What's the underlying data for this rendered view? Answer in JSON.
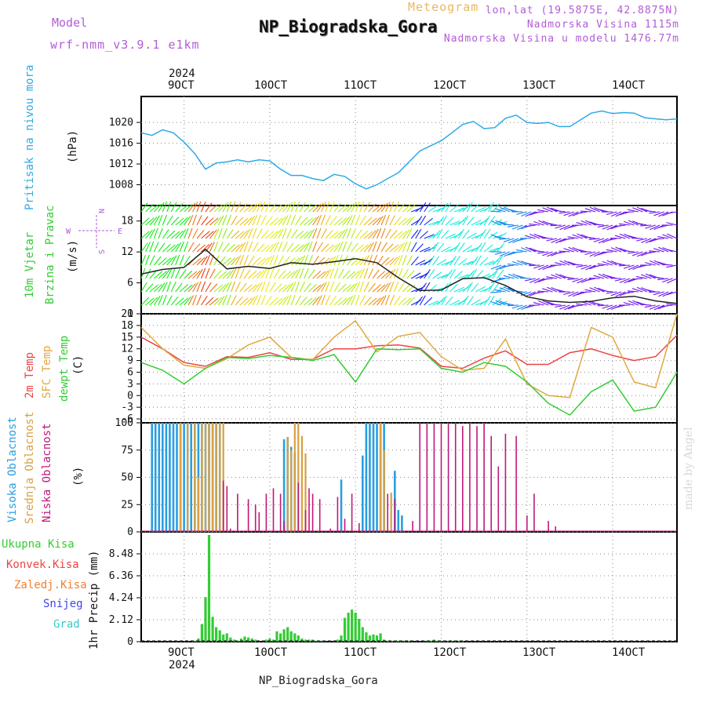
{
  "header": {
    "model_label": "Model",
    "model_name": "wrf-nmm_v3.9.1 e1km",
    "meteogram_label": "Meteogram",
    "station": "NP_Biogradska_Gora",
    "lonlat": "lon,lat (19.5875E, 42.8875N)",
    "elevation": "Nadmorska Visina 1115m",
    "elevation_model": "Nadmorska Visina u modelu 1476.77m",
    "footer_station": "NP_Biogradska_Gora",
    "credit": "made by Angel"
  },
  "colors": {
    "pressure": "#2eaae6",
    "temp2m": "#ee4444",
    "sfc": "#e0a840",
    "dew": "#33cc33",
    "cloud_high": "#2a9ee0",
    "cloud_mid": "#d9a040",
    "cloud_low": "#c0187a",
    "precip_total": "#33cc33",
    "label_purple": "#b25cd6",
    "grid": "#888888"
  },
  "time_axis": {
    "year_label": "2024",
    "ticks": [
      "9OCT",
      "10OCT",
      "11OCT",
      "12OCT",
      "13OCT",
      "14OCT"
    ]
  },
  "panels": {
    "pressure": {
      "title": "Pritisak na nivou mora",
      "unit": "(hPa)",
      "yticks": [
        "1008",
        "1012",
        "1016",
        "1020"
      ]
    },
    "wind": {
      "title_line1": "10m Vjetar",
      "title_line2": "Brzina i Pravac",
      "unit": "(m/s)",
      "yticks": [
        "0",
        "6",
        "12",
        "18"
      ],
      "compass_w": "W",
      "compass_e": "E",
      "compass_n": "N",
      "compass_s": "S"
    },
    "temperature": {
      "title_2m": "2m Temp",
      "title_sfc": "SFC Temp",
      "title_dew": "dewpt Temp",
      "unit": "(C)",
      "yticks": [
        "-6",
        "-3",
        "0",
        "3",
        "6",
        "9",
        "12",
        "15",
        "18",
        "21"
      ]
    },
    "cloud": {
      "title_high": "Visoka Oblacnost",
      "title_mid": "Srednja Oblacnost",
      "title_low": "Niska  Oblacnost",
      "unit": "(%)",
      "yticks": [
        "0",
        "25",
        "50",
        "75",
        "100"
      ]
    },
    "precip": {
      "unit": "1hr Precip (mm)",
      "yticks": [
        "0",
        "2.12",
        "4.24",
        "6.36",
        "8.48"
      ],
      "legend": [
        {
          "label": "Ukupna  Kisa",
          "color": "#33cc33"
        },
        {
          "label": "Konvek.Kisa",
          "color": "#ee4444"
        },
        {
          "label": "Zaledj.Kisa",
          "color": "#f08030"
        },
        {
          "label": "Snijeg",
          "color": "#4444ee"
        },
        {
          "label": "Grad",
          "color": "#33cccc"
        }
      ]
    }
  },
  "chart_data": [
    {
      "type": "line",
      "title": "Pritisak na nivou mora",
      "ylabel": "(hPa)",
      "x_unit": "hours since 8OCT 12Z",
      "ylim": [
        1004,
        1025
      ],
      "series": [
        {
          "name": "Pritisak na nivou mora",
          "x": [
            0,
            3,
            6,
            9,
            12,
            15,
            18,
            21,
            24,
            27,
            30,
            33,
            36,
            39,
            42,
            45,
            48,
            51,
            54,
            57,
            60,
            63,
            66,
            69,
            72,
            75,
            78,
            81,
            84,
            87,
            90,
            93,
            96,
            99,
            102,
            105,
            108,
            111,
            114,
            117,
            120,
            123,
            126,
            129,
            132,
            135,
            138,
            141,
            144,
            147,
            150
          ],
          "values": [
            1018,
            1017.5,
            1018.6,
            1018,
            1016.2,
            1014,
            1011,
            1012.2,
            1012.4,
            1012.8,
            1012.4,
            1012.8,
            1012.6,
            1011,
            1009.8,
            1009.8,
            1009.2,
            1008.8,
            1010,
            1009.6,
            1008.2,
            1007.2,
            1008,
            1009.2,
            1010.3,
            1012.4,
            1014.5,
            1015.5,
            1016.5,
            1018,
            1019.6,
            1020.2,
            1018.8,
            1019,
            1020.8,
            1021.4,
            1020,
            1019.8,
            1020,
            1019.2,
            1019.2,
            1020.5,
            1021.8,
            1022.2,
            1021.7,
            1021.9,
            1021.8,
            1020.9,
            1020.7,
            1020.5,
            1020.7
          ]
        }
      ]
    },
    {
      "type": "line",
      "title": "10m Vjetar Brzina i Pravac",
      "ylabel": "(m/s)",
      "x_unit": "hours since 8OCT 12Z",
      "ylim": [
        0,
        21
      ],
      "series": [
        {
          "name": "10m Vjetar",
          "x": [
            0,
            6,
            12,
            18,
            24,
            30,
            36,
            42,
            48,
            54,
            60,
            66,
            72,
            78,
            84,
            90,
            96,
            102,
            108,
            114,
            120,
            126,
            132,
            138,
            144,
            150
          ],
          "values": [
            7.7,
            8.6,
            9,
            12.5,
            8.7,
            9.2,
            8.8,
            9.9,
            9.6,
            10.1,
            10.7,
            9.9,
            7,
            4.5,
            4.6,
            6.8,
            7,
            5.5,
            3.3,
            2.5,
            2.2,
            2.4,
            3.1,
            3.4,
            2.5,
            2
          ]
        }
      ]
    },
    {
      "type": "line",
      "title": "2m Temp / SFC Temp / dewpt Temp",
      "ylabel": "(C)",
      "x_unit": "hours since 8OCT 12Z",
      "ylim": [
        -7,
        21
      ],
      "series": [
        {
          "name": "2m Temp",
          "x": [
            0,
            6,
            12,
            18,
            24,
            30,
            36,
            42,
            48,
            54,
            60,
            66,
            72,
            78,
            84,
            90,
            96,
            102,
            108,
            114,
            120,
            126,
            132,
            138,
            144,
            150
          ],
          "values": [
            15,
            12,
            8.5,
            7.5,
            10,
            9.8,
            11,
            9.3,
            9.3,
            12,
            12,
            12.8,
            13,
            12.2,
            7.5,
            7,
            9.6,
            11.5,
            8,
            8,
            11,
            12,
            10.3,
            9,
            10,
            15.5
          ]
        },
        {
          "name": "SFC Temp",
          "x": [
            0,
            6,
            12,
            18,
            24,
            30,
            36,
            42,
            48,
            54,
            60,
            66,
            72,
            78,
            84,
            90,
            96,
            102,
            108,
            114,
            120,
            126,
            132,
            138,
            144,
            150
          ],
          "values": [
            17.5,
            12,
            7.8,
            7,
            9.5,
            13,
            15,
            9.8,
            9.2,
            15,
            19.2,
            11.2,
            15.2,
            16.2,
            10,
            6.5,
            7,
            14.5,
            3,
            0,
            -0.5,
            17.5,
            15,
            3.5,
            2,
            21
          ]
        },
        {
          "name": "dewpt Temp",
          "x": [
            0,
            6,
            12,
            18,
            24,
            30,
            36,
            42,
            48,
            54,
            60,
            66,
            72,
            78,
            84,
            90,
            96,
            102,
            108,
            114,
            120,
            126,
            132,
            138,
            144,
            150
          ],
          "values": [
            8.5,
            6.5,
            3,
            7,
            9.8,
            9.5,
            10.3,
            9.8,
            9,
            10.5,
            3.5,
            12,
            11.8,
            12,
            7,
            6,
            8.5,
            7.5,
            3.5,
            -2,
            -5,
            1,
            4,
            -4,
            -3,
            6
          ]
        }
      ]
    },
    {
      "type": "bar",
      "title": "Oblacnost",
      "ylabel": "(%)",
      "x_unit": "hours since 8OCT 12Z",
      "ylim": [
        0,
        100
      ],
      "series": [
        {
          "name": "Visoka Oblacnost",
          "x": [
            3,
            4,
            5,
            6,
            7,
            8,
            9,
            10,
            11,
            12,
            13,
            14,
            15,
            16,
            17,
            18,
            19,
            20,
            21,
            22,
            40,
            41,
            42,
            43,
            56,
            62,
            63,
            64,
            65,
            66,
            67,
            68,
            71,
            72,
            73
          ],
          "values": [
            100,
            100,
            100,
            100,
            100,
            100,
            100,
            100,
            100,
            100,
            100,
            100,
            100,
            100,
            100,
            100,
            100,
            100,
            100,
            100,
            85,
            87,
            78,
            72,
            48,
            70,
            100,
            100,
            100,
            100,
            100,
            100,
            56,
            20,
            15
          ]
        },
        {
          "name": "Srednja Oblacnost",
          "x": [
            11,
            13,
            15,
            16,
            17,
            18,
            19,
            20,
            21,
            22,
            23,
            41,
            42,
            43,
            44,
            45,
            46,
            67,
            68,
            70
          ],
          "values": [
            100,
            100,
            100,
            50,
            100,
            100,
            100,
            100,
            100,
            100,
            100,
            87,
            75,
            100,
            100,
            88,
            72,
            100,
            75,
            36
          ]
        },
        {
          "name": "Niska  Oblacnost",
          "x": [
            23,
            24,
            25,
            27,
            30,
            32,
            33,
            35,
            37,
            39,
            40,
            44,
            46,
            47,
            48,
            50,
            53,
            55,
            57,
            59,
            61,
            69,
            71,
            76,
            78,
            80,
            82,
            84,
            86,
            88,
            90,
            92,
            94,
            96,
            98,
            100,
            102,
            105,
            108,
            110,
            114,
            116
          ],
          "values": [
            47,
            42,
            3,
            35,
            30,
            25,
            18,
            35,
            40,
            35,
            10,
            45,
            20,
            40,
            35,
            30,
            3,
            32,
            12,
            35,
            8,
            35,
            30,
            10,
            100,
            100,
            100,
            100,
            100,
            100,
            97,
            100,
            97,
            100,
            88,
            60,
            90,
            88,
            15,
            35,
            10,
            5
          ]
        }
      ]
    },
    {
      "type": "bar",
      "title": "1hr Precip",
      "ylabel": "1hr Precip (mm)",
      "x_unit": "hours since 8OCT 12Z",
      "ylim": [
        0,
        10.6
      ],
      "series": [
        {
          "name": "Ukupna  Kisa",
          "x": [
            15,
            16,
            17,
            18,
            19,
            20,
            21,
            22,
            23,
            24,
            25,
            26,
            27,
            28,
            29,
            30,
            31,
            32,
            35,
            36,
            37,
            38,
            39,
            40,
            41,
            42,
            43,
            44,
            45,
            46,
            47,
            48,
            49,
            50,
            51,
            55,
            56,
            57,
            58,
            59,
            60,
            61,
            62,
            63,
            64,
            65,
            66,
            67,
            68,
            69,
            70,
            71,
            72,
            73,
            74,
            75,
            80,
            81,
            82,
            83,
            84,
            85,
            86,
            87,
            88,
            89,
            90
          ],
          "values": [
            0.1,
            0.3,
            1.7,
            4.3,
            10.3,
            2.4,
            1.4,
            1.1,
            0.7,
            0.8,
            0.4,
            0.2,
            0.1,
            0.3,
            0.5,
            0.4,
            0.3,
            0.2,
            0.2,
            0.3,
            0.2,
            1.0,
            0.8,
            1.2,
            1.4,
            1.0,
            0.8,
            0.6,
            0.3,
            0.2,
            0.2,
            0.2,
            0.1,
            0.1,
            0.1,
            0.2,
            0.6,
            2.3,
            2.8,
            3.1,
            2.8,
            2.2,
            1.4,
            0.9,
            0.6,
            0.7,
            0.6,
            0.8,
            0.2,
            0.1,
            0.1,
            0.1,
            0.1,
            0.1,
            0.1,
            0.1,
            0.1,
            0.1,
            0.2,
            0.1,
            0.1,
            0.1,
            0.1,
            0.1,
            0.1,
            0.1,
            0.1
          ]
        }
      ]
    }
  ]
}
